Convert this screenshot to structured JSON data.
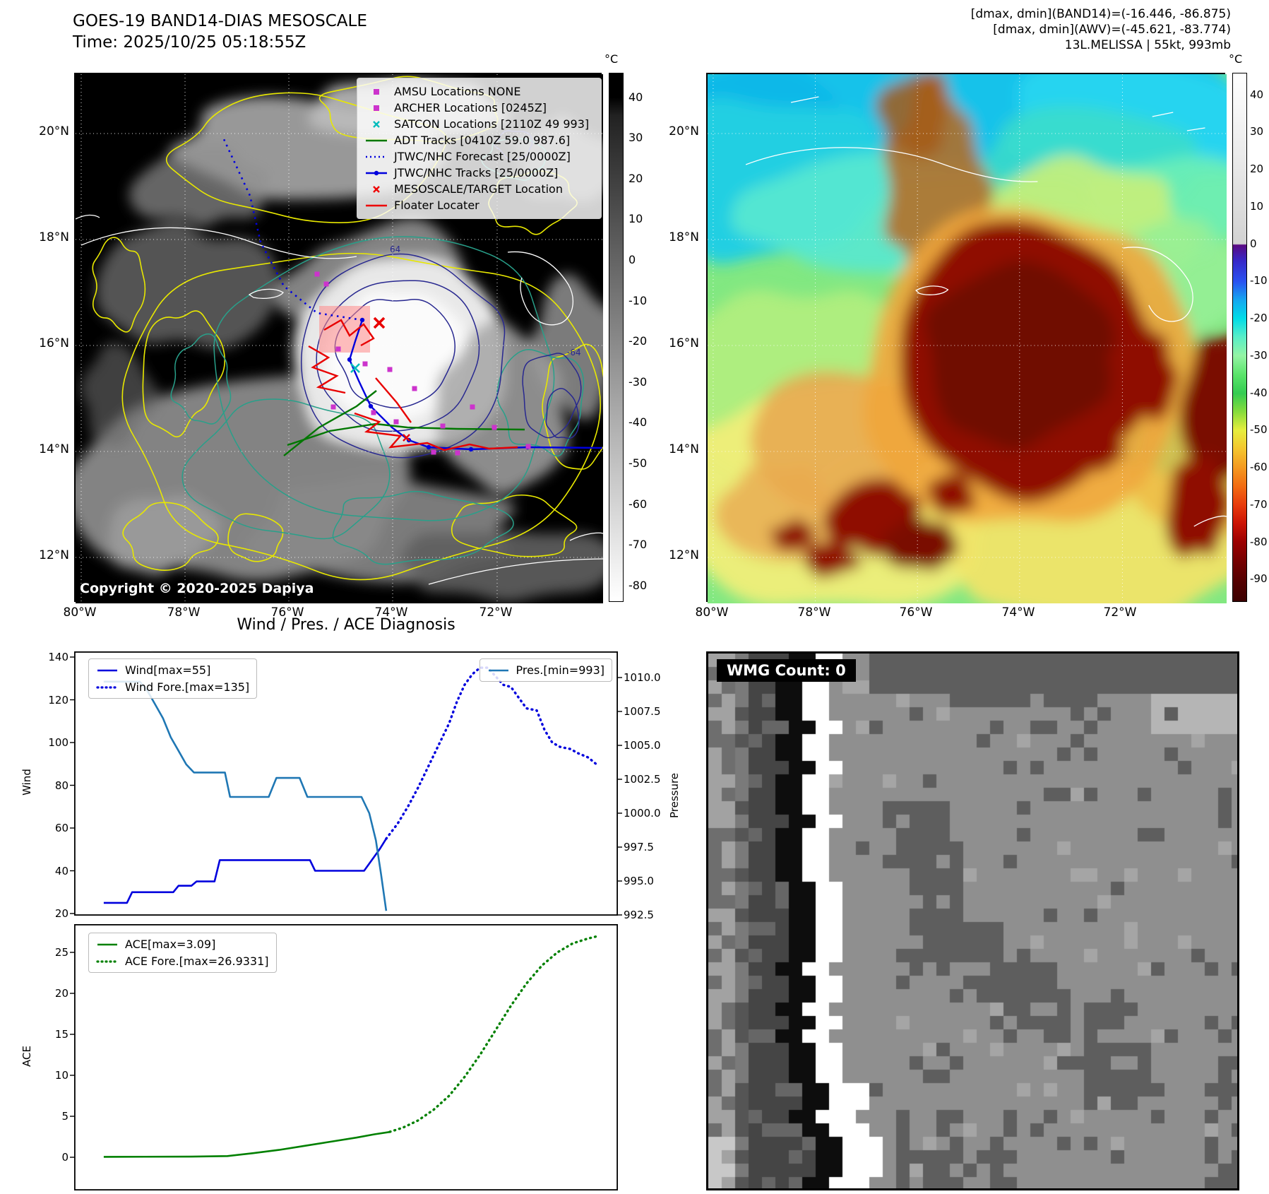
{
  "band14_panel": {
    "title": "GOES-19 BAND14-DIAS MESOSCALE",
    "subtitle": "Time: 2025/10/25 05:18:55Z",
    "copyright": "Copyright © 2020-2025 Dapiya",
    "colorbar": {
      "unit": "°C",
      "ticks": [
        40,
        30,
        20,
        10,
        0,
        -10,
        -20,
        -30,
        -40,
        -50,
        -60,
        -70,
        -80
      ]
    },
    "lon_ticks": [
      "80°W",
      "78°W",
      "76°W",
      "74°W",
      "72°W"
    ],
    "lat_ticks": [
      "20°N",
      "18°N",
      "16°N",
      "14°N",
      "12°N"
    ],
    "contour_labels": {
      "inner": "64",
      "outer": "-64"
    },
    "legend": [
      {
        "label": "AMSU Locations NONE",
        "marker": "square",
        "color": "#cc33cc"
      },
      {
        "label": "ARCHER Locations [0245Z]",
        "marker": "square",
        "color": "#cc33cc"
      },
      {
        "label": "SATCON Locations [2110Z 49 993]",
        "marker": "x",
        "color": "#00bbbb"
      },
      {
        "label": "ADT Tracks [0410Z 59.0 987.6]",
        "marker": "line",
        "color": "#007700"
      },
      {
        "label": "JTWC/NHC Forecast [25/0000Z]",
        "marker": "dotted-line",
        "color": "#0000dd"
      },
      {
        "label": "JTWC/NHC Tracks [25/0000Z]",
        "marker": "line-dot",
        "color": "#0000dd"
      },
      {
        "label": "MESOSCALE/TARGET Location",
        "marker": "x",
        "color": "#ee0000"
      },
      {
        "label": "Floater Locater",
        "marker": "line",
        "color": "#ee0000"
      }
    ]
  },
  "awv_panel": {
    "annotations": [
      "[dmax, dmin](BAND14)=(-16.446, -86.875)",
      "[dmax, dmin](AWV)=(-45.621, -83.774)",
      "13L.MELISSA | 55kt, 993mb"
    ],
    "colorbar": {
      "unit": "°C",
      "ticks": [
        40,
        30,
        20,
        10,
        0,
        -10,
        -20,
        -30,
        -40,
        -50,
        -60,
        -70,
        -80,
        -90
      ]
    },
    "lon_ticks": [
      "80°W",
      "78°W",
      "76°W",
      "74°W",
      "72°W"
    ],
    "lat_ticks": [
      "20°N",
      "18°N",
      "16°N",
      "14°N",
      "12°N"
    ]
  },
  "wmg_panel": {
    "label": "WMG Count: 0"
  },
  "chart_data": [
    {
      "type": "line",
      "title": "Wind / Pres. / ACE Diagnosis",
      "x_range": [
        0,
        1
      ],
      "grid": false,
      "legend_position": "upper-left and upper-right",
      "y_left": {
        "label": "Wind",
        "range": [
          20,
          140
        ],
        "ticks": [
          20,
          40,
          60,
          80,
          100,
          120,
          140
        ],
        "format": "int"
      },
      "y_right": {
        "label": "Pressure",
        "range": [
          992.5,
          1010.0
        ],
        "ticks": [
          992.5,
          995.0,
          997.5,
          1000.0,
          1002.5,
          1005.0,
          1007.5,
          1010.0
        ],
        "format": "1dp"
      },
      "series": [
        {
          "name": "Wind[max=55]",
          "axis": "left",
          "color": "#0000dd",
          "style": "solid",
          "points": [
            [
              0.03,
              25
            ],
            [
              0.075,
              25
            ],
            [
              0.085,
              30
            ],
            [
              0.165,
              30
            ],
            [
              0.175,
              33
            ],
            [
              0.2,
              33
            ],
            [
              0.21,
              35
            ],
            [
              0.245,
              35
            ],
            [
              0.255,
              45
            ],
            [
              0.43,
              45
            ],
            [
              0.44,
              40
            ],
            [
              0.535,
              40
            ],
            [
              0.55,
              45
            ],
            [
              0.565,
              50
            ],
            [
              0.578,
              55
            ]
          ]
        },
        {
          "name": "Wind Fore.[max=135]",
          "axis": "left",
          "color": "#0000dd",
          "style": "dotted",
          "points": [
            [
              0.578,
              55
            ],
            [
              0.6,
              62
            ],
            [
              0.62,
              70
            ],
            [
              0.64,
              79
            ],
            [
              0.66,
              89
            ],
            [
              0.68,
              99
            ],
            [
              0.7,
              109
            ],
            [
              0.715,
              119
            ],
            [
              0.73,
              127
            ],
            [
              0.745,
              132
            ],
            [
              0.76,
              135
            ],
            [
              0.775,
              135
            ],
            [
              0.79,
              131
            ],
            [
              0.805,
              127
            ],
            [
              0.82,
              126
            ],
            [
              0.835,
              121
            ],
            [
              0.85,
              116
            ],
            [
              0.87,
              115
            ],
            [
              0.885,
              106
            ],
            [
              0.9,
              100
            ],
            [
              0.915,
              98
            ],
            [
              0.935,
              97
            ],
            [
              0.95,
              95
            ],
            [
              0.97,
              93
            ],
            [
              0.985,
              90
            ]
          ]
        },
        {
          "name": "Pres.[min=993]",
          "axis": "right",
          "color": "#1f77b4",
          "style": "solid",
          "points": [
            [
              0.03,
              1009.7
            ],
            [
              0.1,
              1009.7
            ],
            [
              0.115,
              1009
            ],
            [
              0.13,
              1008
            ],
            [
              0.145,
              1007
            ],
            [
              0.16,
              1005.6
            ],
            [
              0.175,
              1004.6
            ],
            [
              0.19,
              1003.6
            ],
            [
              0.205,
              1003
            ],
            [
              0.265,
              1003
            ],
            [
              0.275,
              1001.2
            ],
            [
              0.35,
              1001.2
            ],
            [
              0.365,
              1002.6
            ],
            [
              0.41,
              1002.6
            ],
            [
              0.425,
              1001.2
            ],
            [
              0.53,
              1001.2
            ],
            [
              0.545,
              1000
            ],
            [
              0.558,
              998
            ],
            [
              0.568,
              995.5
            ],
            [
              0.578,
              992.8
            ]
          ]
        }
      ]
    },
    {
      "type": "line",
      "title": "ACE",
      "x_range": [
        0,
        1
      ],
      "grid": false,
      "legend_position": "upper-left",
      "y_left": {
        "label": "ACE",
        "range": [
          -1.5,
          28
        ],
        "ticks": [
          0,
          5,
          10,
          15,
          20,
          25
        ],
        "format": "int"
      },
      "series": [
        {
          "name": "ACE[max=3.09]",
          "axis": "left",
          "color": "#008000",
          "style": "solid",
          "points": [
            [
              0.03,
              0.05
            ],
            [
              0.2,
              0.08
            ],
            [
              0.27,
              0.15
            ],
            [
              0.32,
              0.5
            ],
            [
              0.37,
              0.9
            ],
            [
              0.42,
              1.4
            ],
            [
              0.47,
              1.9
            ],
            [
              0.52,
              2.4
            ],
            [
              0.555,
              2.8
            ],
            [
              0.585,
              3.09
            ]
          ]
        },
        {
          "name": "ACE Fore.[max=26.9331]",
          "axis": "left",
          "color": "#008000",
          "style": "dotted",
          "points": [
            [
              0.585,
              3.1
            ],
            [
              0.61,
              3.6
            ],
            [
              0.64,
              4.5
            ],
            [
              0.67,
              5.8
            ],
            [
              0.7,
              7.5
            ],
            [
              0.73,
              9.8
            ],
            [
              0.76,
              12.5
            ],
            [
              0.79,
              15.5
            ],
            [
              0.82,
              18.5
            ],
            [
              0.85,
              21.2
            ],
            [
              0.88,
              23.4
            ],
            [
              0.91,
              25.0
            ],
            [
              0.94,
              26.1
            ],
            [
              0.97,
              26.7
            ],
            [
              0.985,
              26.93
            ]
          ]
        }
      ]
    }
  ]
}
